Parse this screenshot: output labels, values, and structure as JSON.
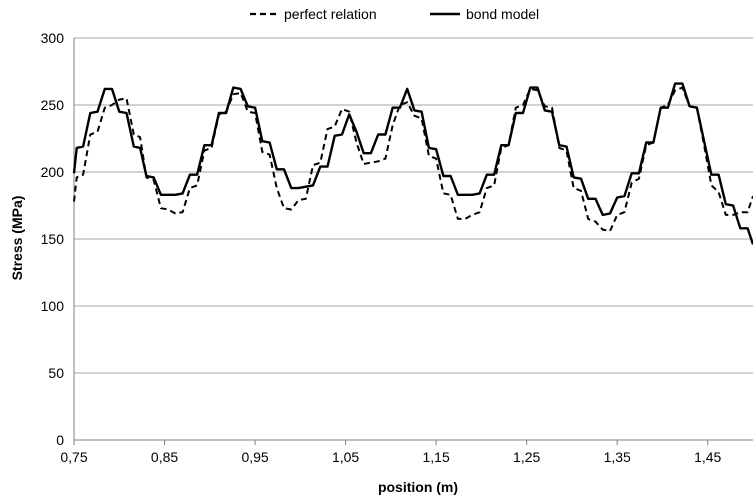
{
  "chart_data": {
    "type": "line",
    "title": "",
    "xlabel": "position (m)",
    "ylabel": "Stress (MPa)",
    "xlim": [
      0.75,
      1.5
    ],
    "ylim": [
      0,
      300
    ],
    "x_ticks": [
      0.75,
      0.85,
      0.95,
      1.05,
      1.15,
      1.25,
      1.35,
      1.45
    ],
    "x_tick_labels": [
      "0,75",
      "0,85",
      "0,95",
      "1,05",
      "1,15",
      "1,25",
      "1,35",
      "1,45"
    ],
    "y_ticks": [
      0,
      50,
      100,
      150,
      200,
      250,
      300
    ],
    "y_tick_labels": [
      "0",
      "50",
      "100",
      "150",
      "200",
      "250",
      "300"
    ],
    "grid": "horizontal",
    "legend": "top",
    "line_color": "#000000",
    "series": [
      {
        "name": "perfect relation",
        "style": "dashed",
        "x": [
          0.75,
          0.753,
          0.76,
          0.768,
          0.776,
          0.784,
          0.792,
          0.8,
          0.808,
          0.816,
          0.823,
          0.83,
          0.838,
          0.846,
          0.854,
          0.862,
          0.87,
          0.878,
          0.886,
          0.894,
          0.902,
          0.91,
          0.918,
          0.926,
          0.934,
          0.942,
          0.95,
          0.958,
          0.966,
          0.974,
          0.982,
          0.99,
          0.998,
          1.006,
          1.014,
          1.022,
          1.03,
          1.038,
          1.046,
          1.054,
          1.062,
          1.07,
          1.078,
          1.086,
          1.094,
          1.102,
          1.11,
          1.118,
          1.126,
          1.134,
          1.142,
          1.15,
          1.158,
          1.166,
          1.174,
          1.182,
          1.19,
          1.198,
          1.206,
          1.214,
          1.222,
          1.23,
          1.238,
          1.246,
          1.254,
          1.262,
          1.27,
          1.278,
          1.286,
          1.294,
          1.302,
          1.31,
          1.318,
          1.326,
          1.334,
          1.342,
          1.35,
          1.358,
          1.366,
          1.374,
          1.382,
          1.39,
          1.398,
          1.406,
          1.414,
          1.422,
          1.43,
          1.438,
          1.446,
          1.454,
          1.462,
          1.47,
          1.478,
          1.486,
          1.494,
          1.5
        ],
        "y": [
          178,
          196,
          198,
          228,
          230,
          248,
          250,
          254,
          255,
          228,
          226,
          196,
          194,
          173,
          172,
          169,
          170,
          188,
          190,
          216,
          218,
          243,
          245,
          258,
          259,
          245,
          244,
          215,
          213,
          188,
          173,
          172,
          179,
          180,
          205,
          207,
          232,
          234,
          247,
          245,
          222,
          206,
          207,
          208,
          210,
          235,
          250,
          252,
          242,
          240,
          212,
          210,
          184,
          183,
          165,
          165,
          168,
          170,
          188,
          190,
          218,
          220,
          248,
          250,
          262,
          261,
          249,
          248,
          218,
          216,
          188,
          186,
          165,
          163,
          157,
          156,
          168,
          170,
          192,
          195,
          220,
          222,
          248,
          250,
          261,
          263,
          249,
          248,
          220,
          190,
          185,
          168,
          168,
          170,
          170,
          182
        ]
      },
      {
        "name": "bond model",
        "style": "solid",
        "x": [
          0.75,
          0.753,
          0.76,
          0.768,
          0.776,
          0.784,
          0.792,
          0.8,
          0.808,
          0.816,
          0.823,
          0.83,
          0.838,
          0.846,
          0.854,
          0.862,
          0.87,
          0.878,
          0.886,
          0.894,
          0.902,
          0.91,
          0.918,
          0.926,
          0.934,
          0.942,
          0.95,
          0.958,
          0.966,
          0.974,
          0.982,
          0.99,
          0.998,
          1.006,
          1.014,
          1.022,
          1.03,
          1.038,
          1.046,
          1.054,
          1.062,
          1.07,
          1.078,
          1.086,
          1.094,
          1.102,
          1.11,
          1.118,
          1.126,
          1.134,
          1.142,
          1.15,
          1.158,
          1.166,
          1.174,
          1.182,
          1.19,
          1.198,
          1.206,
          1.214,
          1.222,
          1.23,
          1.238,
          1.246,
          1.254,
          1.262,
          1.27,
          1.278,
          1.286,
          1.294,
          1.302,
          1.31,
          1.318,
          1.326,
          1.334,
          1.342,
          1.35,
          1.358,
          1.366,
          1.374,
          1.382,
          1.39,
          1.398,
          1.406,
          1.414,
          1.422,
          1.43,
          1.438,
          1.446,
          1.454,
          1.462,
          1.47,
          1.478,
          1.486,
          1.494,
          1.5
        ],
        "y": [
          199,
          218,
          219,
          244,
          245,
          262,
          262,
          245,
          244,
          219,
          218,
          197,
          196,
          183,
          183,
          183,
          184,
          198,
          198,
          220,
          220,
          244,
          244,
          263,
          262,
          249,
          248,
          223,
          222,
          202,
          202,
          188,
          188,
          189,
          190,
          204,
          204,
          227,
          228,
          243,
          230,
          214,
          214,
          228,
          228,
          248,
          248,
          262,
          246,
          245,
          218,
          217,
          197,
          197,
          183,
          183,
          183,
          184,
          198,
          198,
          220,
          220,
          244,
          244,
          263,
          263,
          246,
          245,
          220,
          219,
          196,
          195,
          180,
          180,
          168,
          169,
          181,
          182,
          199,
          199,
          222,
          222,
          248,
          248,
          266,
          266,
          249,
          248,
          223,
          198,
          198,
          176,
          175,
          158,
          158,
          146
        ]
      }
    ]
  }
}
